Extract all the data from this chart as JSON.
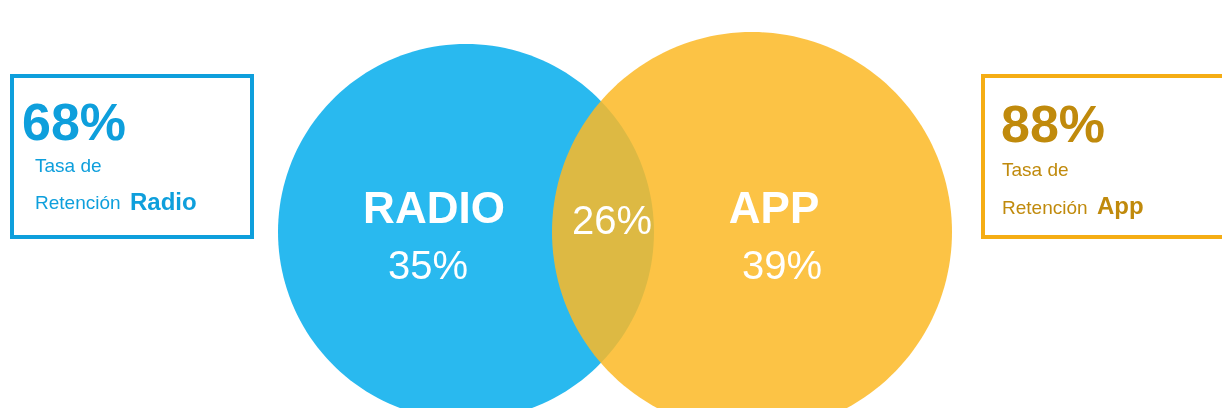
{
  "chart_data": {
    "type": "other",
    "categories": [
      "RADIO",
      "APP"
    ],
    "values": [
      35,
      39
    ],
    "value_labels": [
      "35%",
      "39%"
    ],
    "colors": [
      "#29b9ef",
      "#fbb927"
    ],
    "annotations": [
      "68%",
      "Tasa de",
      "Retención",
      "Radio",
      "88%",
      "Tasa de",
      "Retención",
      "App",
      "26%"
    ]
  }
}
